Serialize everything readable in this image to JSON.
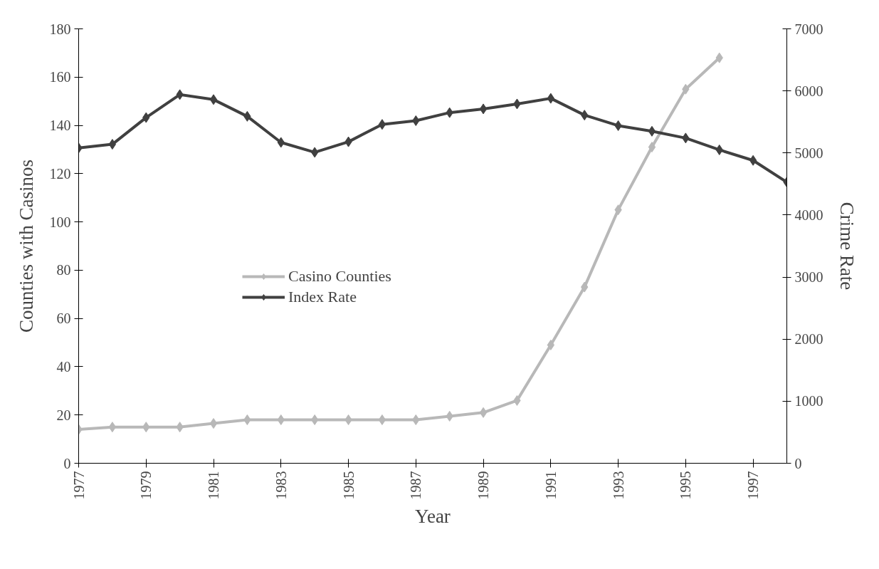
{
  "chart_data": {
    "type": "line",
    "xlabel": "Year",
    "ylabel": "Counties with Casinos",
    "y2label": "Crime Rate",
    "x": [
      1977,
      1978,
      1979,
      1980,
      1981,
      1982,
      1983,
      1984,
      1985,
      1986,
      1987,
      1988,
      1989,
      1990,
      1991,
      1992,
      1993,
      1994,
      1995,
      1996,
      1997,
      1998
    ],
    "series": [
      {
        "name": "Casino Counties",
        "color": "#b8b8b8",
        "x": [
          1977,
          1978,
          1979,
          1980,
          1981,
          1982,
          1983,
          1984,
          1985,
          1986,
          1987,
          1988,
          1989,
          1990,
          1991,
          1992,
          1993,
          1994,
          1995,
          1996
        ],
        "values": [
          14,
          15,
          15,
          15,
          16.5,
          18,
          18,
          18,
          18,
          18,
          18,
          19.5,
          21,
          26,
          49,
          73,
          105,
          131,
          155,
          168
        ]
      },
      {
        "name": "Index Rate",
        "color": "#404040",
        "axis": "y2",
        "values": [
          5080,
          5140,
          5570,
          5940,
          5860,
          5590,
          5170,
          5010,
          5180,
          5460,
          5520,
          5650,
          5710,
          5790,
          5880,
          5610,
          5440,
          5350,
          5240,
          5050,
          4880,
          4530
        ]
      }
    ],
    "xlim": [
      1977,
      1998
    ],
    "xticks": [
      1977,
      1979,
      1981,
      1983,
      1985,
      1987,
      1989,
      1991,
      1993,
      1995,
      1997
    ],
    "ylim": [
      0,
      180
    ],
    "yticks": [
      0,
      20,
      40,
      60,
      80,
      100,
      120,
      140,
      160,
      180
    ],
    "y2lim": [
      0,
      7000
    ],
    "y2ticks": [
      0,
      1000,
      2000,
      3000,
      4000,
      5000,
      6000,
      7000
    ],
    "marker": "diamond",
    "line_style": "solid",
    "grid": false,
    "legend": "left"
  }
}
